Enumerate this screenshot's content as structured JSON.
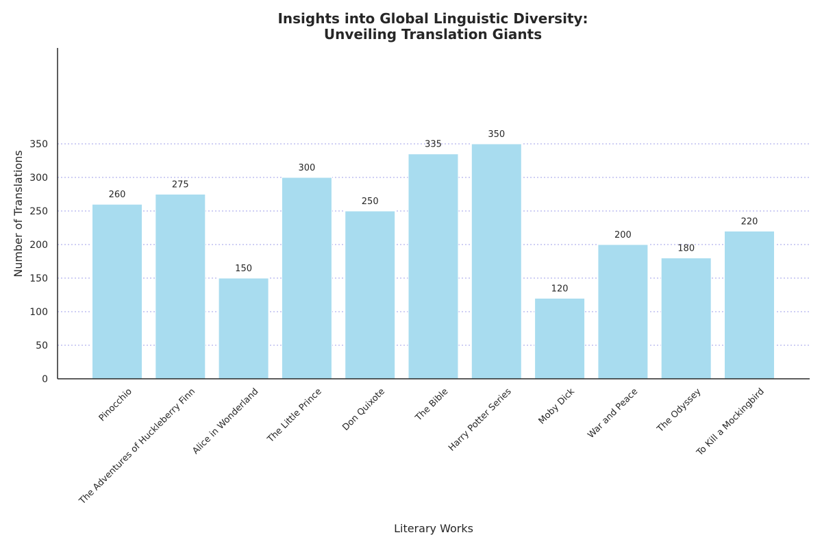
{
  "chart_data": {
    "type": "bar",
    "title": "Insights into Global Linguistic Diversity:",
    "subtitle": "Unveiling Translation Giants",
    "xlabel": "Literary Works",
    "ylabel": "Number of Translations",
    "categories": [
      "Pinocchio",
      "The Adventures of Huckleberry Finn",
      "Alice in Wonderland",
      "The Little Prince",
      "Don Quixote",
      "The Bible",
      "Harry Potter Series",
      "Moby Dick",
      "War and Peace",
      "The Odyssey",
      "To Kill a Mockingbird"
    ],
    "values": [
      260,
      275,
      150,
      300,
      250,
      335,
      350,
      120,
      200,
      180,
      220
    ],
    "ylim": [
      0,
      390
    ],
    "yticks": [
      0,
      50,
      100,
      150,
      200,
      250,
      300,
      350
    ],
    "grid": true,
    "bar_color": "#a8dcef"
  }
}
